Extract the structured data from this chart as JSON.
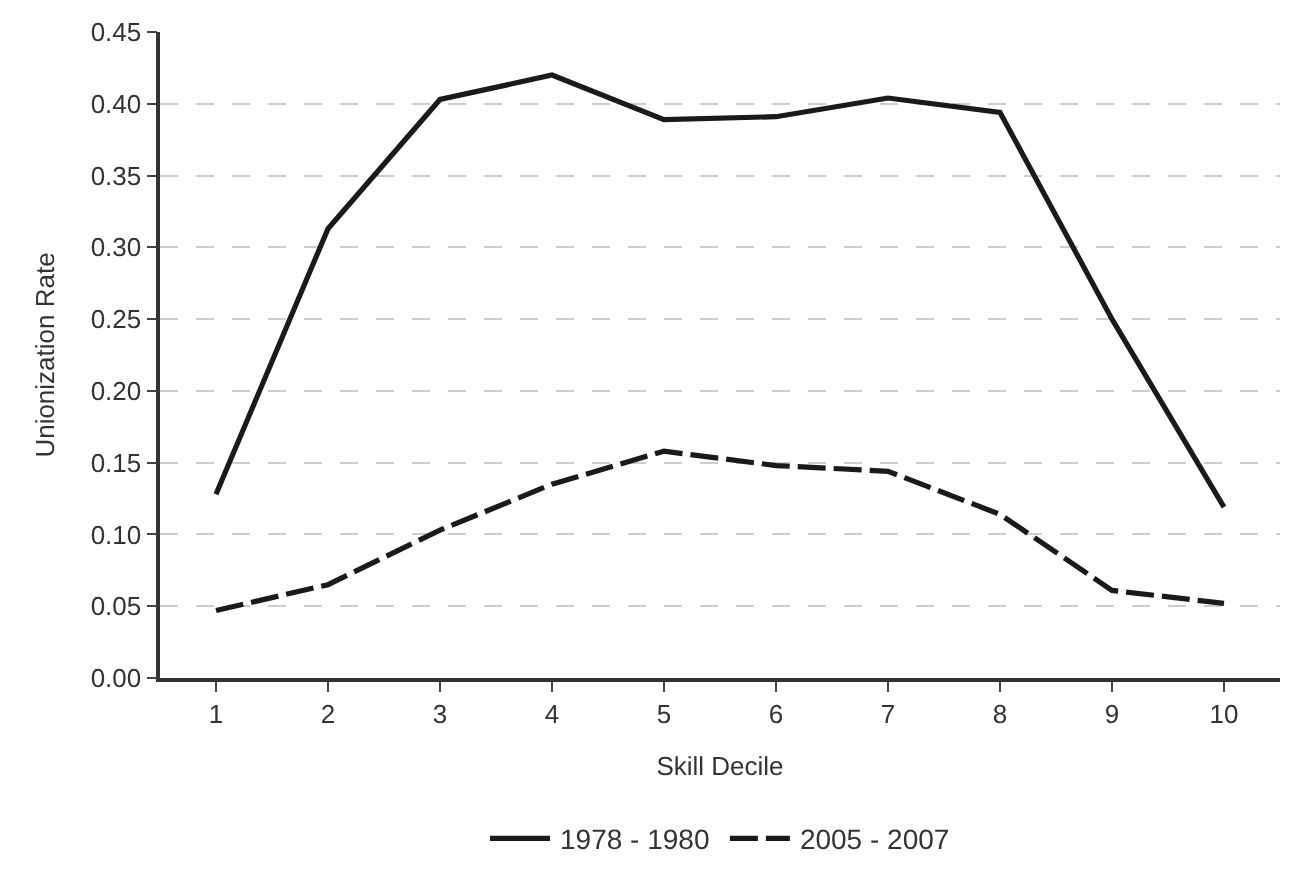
{
  "chart_data": {
    "type": "line",
    "xlabel": "Skill Decile",
    "ylabel": "Unionization Rate",
    "categories": [
      "1",
      "2",
      "3",
      "4",
      "5",
      "6",
      "7",
      "8",
      "9",
      "10"
    ],
    "series": [
      {
        "name": "1978 - 1980",
        "color": "#1a1a1a",
        "line_style": "solid",
        "values": [
          0.128,
          0.313,
          0.403,
          0.42,
          0.389,
          0.391,
          0.404,
          0.394,
          0.25,
          0.119
        ]
      },
      {
        "name": "2005 - 2007",
        "color": "#1a1a1a",
        "line_style": "dashed",
        "values": [
          0.047,
          0.065,
          0.103,
          0.135,
          0.158,
          0.148,
          0.144,
          0.114,
          0.061,
          0.052
        ]
      }
    ],
    "ylim": [
      0,
      0.45
    ],
    "yticks": [
      {
        "value": 0,
        "label": "0.00"
      },
      {
        "value": 0.05,
        "label": "0.05"
      },
      {
        "value": 0.1,
        "label": "0.10"
      },
      {
        "value": 0.15,
        "label": "0.15"
      },
      {
        "value": 0.2,
        "label": "0.20"
      },
      {
        "value": 0.25,
        "label": "0.25"
      },
      {
        "value": 0.3,
        "label": "0.30"
      },
      {
        "value": 0.35,
        "label": "0.35"
      },
      {
        "value": 0.4,
        "label": "0.40"
      },
      {
        "value": 0.45,
        "label": "0.45"
      }
    ],
    "grid": "y",
    "legend": "bottom",
    "marker": "none"
  }
}
